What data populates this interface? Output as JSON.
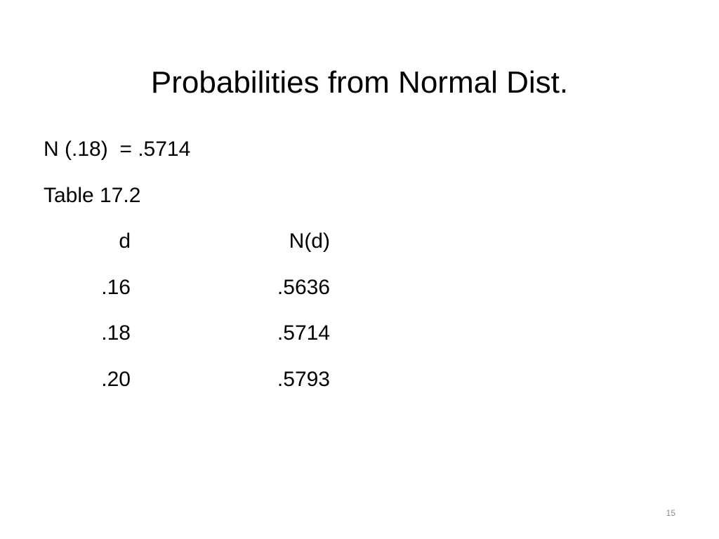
{
  "slide": {
    "title": "Probabilities from Normal Dist.",
    "lines": [
      "N (.18)  = .5714",
      "Table 17.2"
    ],
    "table": {
      "header": [
        "d",
        "N(d)"
      ],
      "rows": [
        [
          ".16",
          ".5636"
        ],
        [
          ".18",
          ".5714"
        ],
        [
          ".20",
          ".5793"
        ]
      ]
    },
    "page_number": "15"
  }
}
